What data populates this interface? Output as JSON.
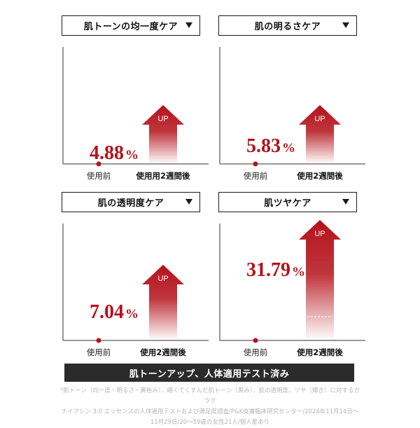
{
  "chart_data": [
    {
      "type": "bar",
      "title": "肌トーンの均一度ケア",
      "categories": [
        "使用前",
        "使用用2週間後"
      ],
      "value_label": "4.88",
      "value_unit": "%",
      "arrow_label": "UP",
      "values": [
        0,
        4.88
      ]
    },
    {
      "type": "bar",
      "title": "肌の明るさケア",
      "categories": [
        "使用前",
        "使用2週間後"
      ],
      "value_label": "5.83",
      "value_unit": "%",
      "arrow_label": "UP",
      "values": [
        0,
        5.83
      ]
    },
    {
      "type": "bar",
      "title": "肌の透明度ケア",
      "categories": [
        "使用前",
        "使用2週間後"
      ],
      "value_label": "7.04",
      "value_unit": "%",
      "arrow_label": "UP",
      "values": [
        0,
        7.04
      ]
    },
    {
      "type": "bar",
      "title": "肌ツヤケア",
      "categories": [
        "使用前",
        "使用2週間後"
      ],
      "value_label": "31.79",
      "value_unit": "%",
      "arrow_label": "UP",
      "values": [
        0,
        31.79
      ]
    }
  ],
  "footer": {
    "banner": "肌トーンアップ、人体適用テスト済み",
    "note_line1": "*肌トーン（均一度・明るさ・黄色み）、暗くてくすんだ肌トーン（黒み）、肌の透明度、ツヤ（輝き）に対するガラク",
    "note_line2": "ナイアシン 3.0 エッセンスの人体適用テストおよび満足度調査/P&K皮膚臨床研究センター/2024年11月14日〜",
    "note_line3": "11月29日/20〜59歳の女性21人/個人差あり"
  },
  "colors": {
    "accent": "#b5121b",
    "axis": "#333333",
    "banner_bg": "#2b2b2b"
  }
}
